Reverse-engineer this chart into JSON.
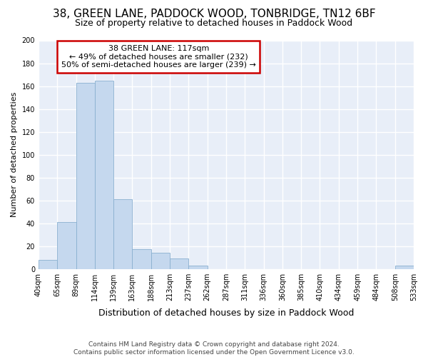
{
  "title": "38, GREEN LANE, PADDOCK WOOD, TONBRIDGE, TN12 6BF",
  "subtitle": "Size of property relative to detached houses in Paddock Wood",
  "xlabel": "Distribution of detached houses by size in Paddock Wood",
  "ylabel": "Number of detached properties",
  "footer_line1": "Contains HM Land Registry data © Crown copyright and database right 2024.",
  "footer_line2": "Contains public sector information licensed under the Open Government Licence v3.0.",
  "annotation_line1": "38 GREEN LANE: 117sqm",
  "annotation_line2": "← 49% of detached houses are smaller (232)",
  "annotation_line3": "50% of semi-detached houses are larger (239) →",
  "bar_color": "#c5d8ee",
  "bar_edge_color": "#8ab0d0",
  "annotation_edge_color": "#cc0000",
  "bg_color": "#e8eef8",
  "grid_color": "#ffffff",
  "bin_labels": [
    "40sqm",
    "65sqm",
    "89sqm",
    "114sqm",
    "139sqm",
    "163sqm",
    "188sqm",
    "213sqm",
    "237sqm",
    "262sqm",
    "287sqm",
    "311sqm",
    "336sqm",
    "360sqm",
    "385sqm",
    "410sqm",
    "434sqm",
    "459sqm",
    "484sqm",
    "508sqm",
    "533sqm"
  ],
  "values": [
    8,
    41,
    163,
    165,
    61,
    17,
    14,
    9,
    3,
    0,
    0,
    0,
    0,
    0,
    0,
    0,
    0,
    0,
    0,
    3
  ],
  "ylim": [
    0,
    200
  ],
  "yticks": [
    0,
    20,
    40,
    60,
    80,
    100,
    120,
    140,
    160,
    180,
    200
  ],
  "title_fontsize": 11,
  "subtitle_fontsize": 9,
  "ylabel_fontsize": 8,
  "xlabel_fontsize": 9,
  "annotation_fontsize": 8,
  "tick_fontsize": 7,
  "footer_fontsize": 6.5
}
